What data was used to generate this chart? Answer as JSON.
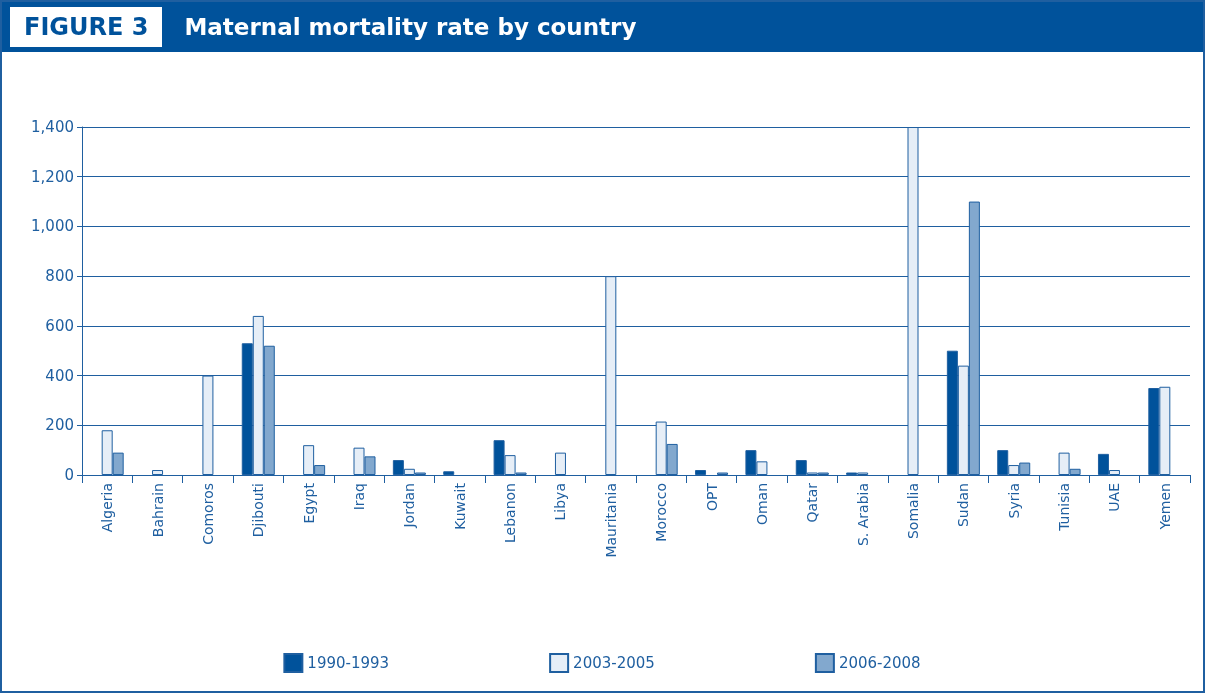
{
  "chart_data": {
    "type": "bar",
    "title": "Maternal mortality rate by country",
    "annotations": [
      "FIGURE 3"
    ],
    "categories": [
      "Algeria",
      "Bahrain",
      "Comoros",
      "Djibouti",
      "Egypt",
      "Iraq",
      "Jordan",
      "Kuwait",
      "Lebanon",
      "Libya",
      "Mauritania",
      "Morocco",
      "OPT",
      "Oman",
      "Qatar",
      "S. Arabia",
      "Somalia",
      "Sudan",
      "Syria",
      "Tunisia",
      "UAE",
      "Yemen"
    ],
    "series": [
      {
        "name": "1990-1993",
        "color": "#00529b",
        "values": [
          null,
          null,
          null,
          530,
          null,
          null,
          60,
          15,
          140,
          null,
          null,
          null,
          20,
          100,
          60,
          10,
          null,
          500,
          100,
          null,
          85,
          350
        ]
      },
      {
        "name": "2003-2005",
        "color": "#e6eef7",
        "values": [
          180,
          20,
          400,
          640,
          120,
          110,
          25,
          null,
          80,
          90,
          800,
          215,
          null,
          55,
          10,
          10,
          1400,
          440,
          40,
          90,
          20,
          355
        ]
      },
      {
        "name": "2006-2008",
        "color": "#82a8ce",
        "values": [
          90,
          null,
          null,
          520,
          40,
          75,
          10,
          null,
          10,
          null,
          null,
          125,
          10,
          null,
          10,
          null,
          null,
          1100,
          50,
          25,
          null,
          null
        ]
      }
    ],
    "ylim": [
      0,
      1400
    ],
    "yticks": [
      0,
      200,
      400,
      600,
      800,
      {
        "value": 1000,
        "label": "1,000"
      },
      {
        "value": 1200,
        "label": "1,200"
      },
      {
        "value": 1400,
        "label": "1,400"
      }
    ],
    "grid": "y",
    "legend": "bottom"
  }
}
